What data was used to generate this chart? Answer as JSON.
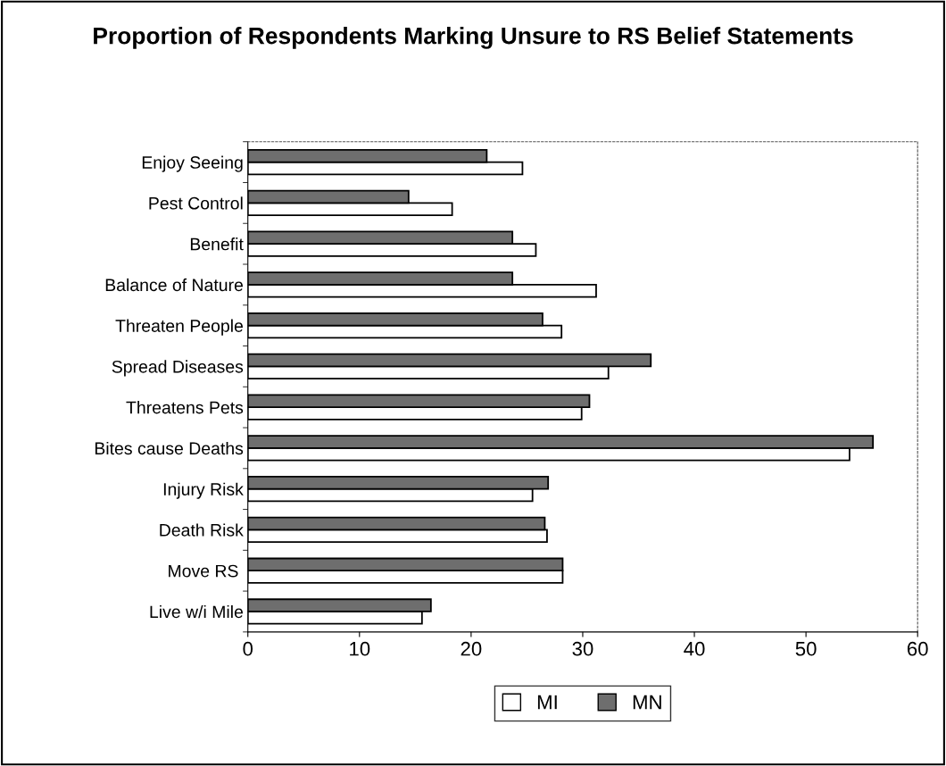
{
  "chart_data": {
    "type": "bar",
    "orientation": "horizontal",
    "title": "Proportion of Respondents Marking Unsure to RS Belief Statements",
    "categories": [
      "Enjoy Seeing",
      "Pest Control",
      "Benefit",
      "Balance of Nature",
      "Threaten People",
      "Spread Diseases",
      "Threatens Pets",
      "Bites cause Deaths",
      "Injury Risk",
      "Death Risk",
      "Move RS ",
      "Live w/i Mile"
    ],
    "series": [
      {
        "name": "MI",
        "color": "#ffffff",
        "values": [
          24.6,
          18.3,
          25.8,
          31.2,
          28.1,
          32.3,
          29.9,
          53.9,
          25.5,
          26.8,
          28.2,
          15.6
        ]
      },
      {
        "name": "MN",
        "color": "#6e6e6e",
        "values": [
          21.4,
          14.4,
          23.7,
          23.7,
          26.4,
          36.1,
          30.6,
          56.0,
          26.9,
          26.6,
          28.2,
          16.4
        ]
      }
    ],
    "xlim": [
      0,
      60
    ],
    "xticks": [
      0,
      10,
      20,
      30,
      40,
      50,
      60
    ],
    "grid": false,
    "legend": "bottom"
  }
}
